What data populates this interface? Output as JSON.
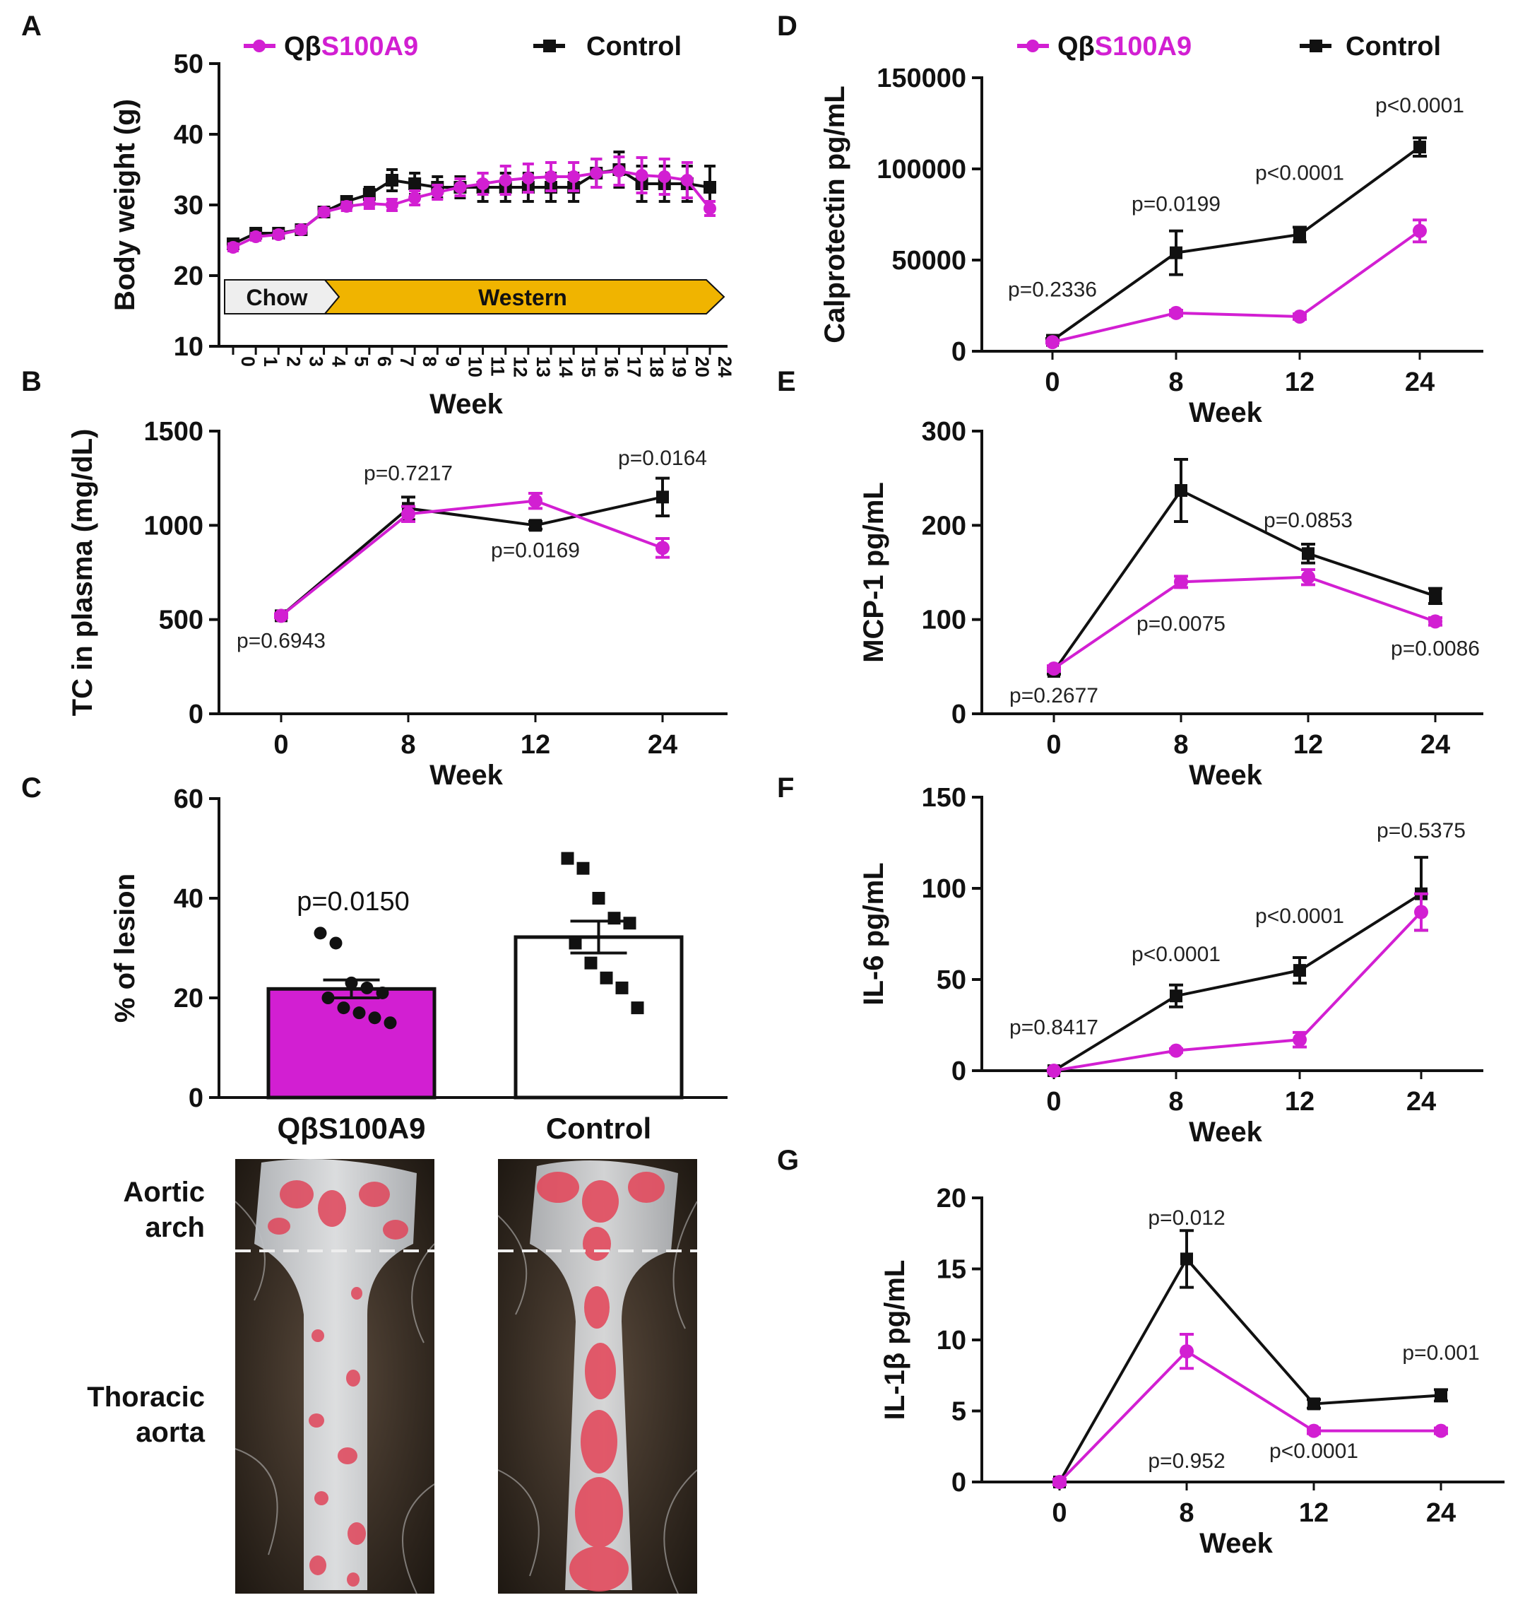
{
  "colors": {
    "qb": "#d21fd2",
    "control": "#111111",
    "diet_chow": "#eeeeee",
    "diet_western": "#f0b400"
  },
  "legend": {
    "qb_prefix": "Qβ",
    "qb_suffix": "S100A9",
    "control": "Control"
  },
  "chart_data": [
    {
      "id": "A",
      "panel_label": "A",
      "type": "line",
      "ylabel": "Body weight (g)",
      "xlabel": "Week",
      "ylim": [
        10,
        50
      ],
      "yticks": [
        10,
        20,
        30,
        40,
        50
      ],
      "categories": [
        "0",
        "1",
        "2",
        "3",
        "4",
        "5",
        "6",
        "7",
        "8",
        "9",
        "10",
        "11",
        "12",
        "13",
        "14",
        "15",
        "16",
        "17",
        "18",
        "19",
        "20",
        "24"
      ],
      "series": [
        {
          "name": "QβS100A9",
          "values": [
            24,
            25.5,
            25.8,
            26.5,
            29,
            29.8,
            30.2,
            30,
            31,
            31.8,
            32.5,
            33,
            33.5,
            33.8,
            34,
            34,
            34.5,
            34.8,
            34.2,
            34,
            33.5,
            29.5
          ],
          "errors": [
            0.5,
            0.5,
            0.5,
            0.5,
            0.5,
            0.6,
            0.7,
            0.8,
            1,
            1,
            1.2,
            1.5,
            2,
            2,
            2,
            2,
            2,
            2,
            2.5,
            2.5,
            2.5,
            1
          ]
        },
        {
          "name": "Control",
          "values": [
            24.5,
            26,
            26,
            26.5,
            29,
            30.5,
            31.5,
            33.5,
            33,
            32.5,
            32.5,
            32.5,
            32.5,
            32.5,
            32.5,
            32.5,
            34.5,
            35,
            33,
            33,
            33,
            32.5
          ],
          "errors": [
            0.5,
            0.5,
            0.5,
            0.5,
            0.5,
            0.6,
            1,
            1.5,
            1.5,
            1.5,
            1.5,
            2,
            2,
            2,
            2,
            2,
            2,
            2.5,
            2.5,
            2.5,
            2.5,
            3
          ]
        }
      ],
      "diet": [
        {
          "label": "Chow"
        },
        {
          "label": "Western"
        }
      ]
    },
    {
      "id": "B",
      "panel_label": "B",
      "type": "line",
      "ylabel": "TC in plasma (mg/dL)",
      "xlabel": "Week",
      "ylim": [
        0,
        1500
      ],
      "yticks": [
        0,
        500,
        1000,
        1500
      ],
      "categories": [
        "0",
        "8",
        "12",
        "24"
      ],
      "series": [
        {
          "name": "QβS100A9",
          "values": [
            520,
            1060,
            1130,
            880
          ],
          "errors": [
            10,
            40,
            40,
            50
          ]
        },
        {
          "name": "Control",
          "values": [
            520,
            1090,
            1000,
            1150
          ],
          "errors": [
            10,
            60,
            20,
            100
          ]
        }
      ],
      "pvalues": [
        {
          "text": "p=0.6943",
          "at": 0,
          "v": 350
        },
        {
          "text": "p=0.7217",
          "at": 1,
          "v": 1240
        },
        {
          "text": "p=0.0169",
          "at": 2,
          "v": 830
        },
        {
          "text": "p=0.0164",
          "at": 3,
          "v": 1320
        }
      ]
    },
    {
      "id": "C",
      "panel_label": "C",
      "type": "bar",
      "ylabel": "% of lesion",
      "ylim": [
        0,
        60
      ],
      "yticks": [
        0,
        20,
        40,
        60
      ],
      "categories": [
        "QβS100A9",
        "Control"
      ],
      "values": [
        21.8,
        32.2
      ],
      "errors": [
        1.8,
        3.2
      ],
      "points": [
        [
          33,
          31,
          23,
          22,
          21,
          20,
          18,
          17,
          16,
          15
        ],
        [
          48,
          46,
          40,
          36,
          35,
          31,
          27,
          24,
          22,
          18
        ]
      ],
      "pvalue": "p=0.0150"
    },
    {
      "id": "D",
      "panel_label": "D",
      "type": "line",
      "ylabel": "Calprotectin pg/mL",
      "xlabel": "Week",
      "ylim": [
        0,
        150000
      ],
      "yticks": [
        0,
        50000,
        100000,
        150000
      ],
      "categories": [
        "0",
        "8",
        "12",
        "24"
      ],
      "series": [
        {
          "name": "QβS100A9",
          "values": [
            5000,
            21000,
            19000,
            66000
          ],
          "errors": [
            500,
            1500,
            1500,
            6000
          ]
        },
        {
          "name": "Control",
          "values": [
            6000,
            54000,
            64000,
            112000
          ],
          "errors": [
            1000,
            12000,
            4000,
            5000
          ]
        }
      ],
      "pvalues": [
        {
          "text": "p=0.2336",
          "at": 0,
          "v": 30000
        },
        {
          "text": "p=0.0199",
          "at": 1,
          "v": 77000
        },
        {
          "text": "p<0.0001",
          "at": 2,
          "v": 94000
        },
        {
          "text": "p<0.0001",
          "at": 3,
          "v": 131000
        }
      ]
    },
    {
      "id": "E",
      "panel_label": "E",
      "type": "line",
      "ylabel": "MCP-1 pg/mL",
      "xlabel": "Week",
      "ylim": [
        0,
        300
      ],
      "yticks": [
        0,
        100,
        200,
        300
      ],
      "categories": [
        "0",
        "8",
        "12",
        "24"
      ],
      "series": [
        {
          "name": "QβS100A9",
          "values": [
            48,
            140,
            145,
            98
          ],
          "errors": [
            3,
            6,
            8,
            4
          ]
        },
        {
          "name": "Control",
          "values": [
            45,
            237,
            170,
            125
          ],
          "errors": [
            3,
            33,
            10,
            8
          ]
        }
      ],
      "pvalues": [
        {
          "text": "p=0.2677",
          "at": 0,
          "v": 12
        },
        {
          "text": "p=0.0075",
          "at": 1,
          "v": 88
        },
        {
          "text": "p=0.0853",
          "at": 2,
          "v": 198
        },
        {
          "text": "p=0.0086",
          "at": 3,
          "v": 62
        }
      ]
    },
    {
      "id": "F",
      "panel_label": "F",
      "type": "line",
      "ylabel": "IL-6 pg/mL",
      "xlabel": "Week",
      "ylim": [
        0,
        150
      ],
      "yticks": [
        0,
        50,
        100,
        150
      ],
      "categories": [
        "0",
        "8",
        "12",
        "24"
      ],
      "series": [
        {
          "name": "QβS100A9",
          "values": [
            0,
            11,
            17,
            87
          ],
          "errors": [
            0.5,
            1,
            4,
            10
          ]
        },
        {
          "name": "Control",
          "values": [
            0,
            41,
            55,
            97
          ],
          "errors": [
            0.5,
            6,
            7,
            20
          ]
        }
      ],
      "pvalues": [
        {
          "text": "p=0.8417",
          "at": 0,
          "v": 20
        },
        {
          "text": "p<0.0001",
          "at": 1,
          "v": 60
        },
        {
          "text": "p<0.0001",
          "at": 2,
          "v": 81
        },
        {
          "text": "p=0.5375",
          "at": 3,
          "v": 128
        }
      ]
    },
    {
      "id": "G",
      "panel_label": "G",
      "type": "line",
      "ylabel": "IL-1β pg/mL",
      "xlabel": "Week",
      "ylim": [
        0,
        20
      ],
      "yticks": [
        0,
        5,
        10,
        15,
        20
      ],
      "categories": [
        "0",
        "8",
        "12",
        "24"
      ],
      "series": [
        {
          "name": "QβS100A9",
          "values": [
            0,
            9.2,
            3.6,
            3.6
          ],
          "errors": [
            0.2,
            1.2,
            0.2,
            0.2
          ]
        },
        {
          "name": "Control",
          "values": [
            0,
            15.7,
            5.5,
            6.1
          ],
          "errors": [
            0.2,
            2,
            0.3,
            0.4
          ]
        }
      ],
      "pvalues": [
        {
          "text": "p=0.012",
          "at": 1,
          "v": 18.1
        },
        {
          "text": "p=0.952",
          "at": 1,
          "v": 1
        },
        {
          "text": "p<0.0001",
          "at": 2,
          "v": 1.7
        },
        {
          "text": "p=0.001",
          "at": 3,
          "v": 8.6
        }
      ]
    }
  ],
  "aorta": {
    "labels": [
      {
        "id": "arch",
        "lines": [
          "Aortic",
          "arch"
        ]
      },
      {
        "id": "thoracic",
        "lines": [
          "Thoracic",
          "aorta"
        ]
      }
    ]
  }
}
